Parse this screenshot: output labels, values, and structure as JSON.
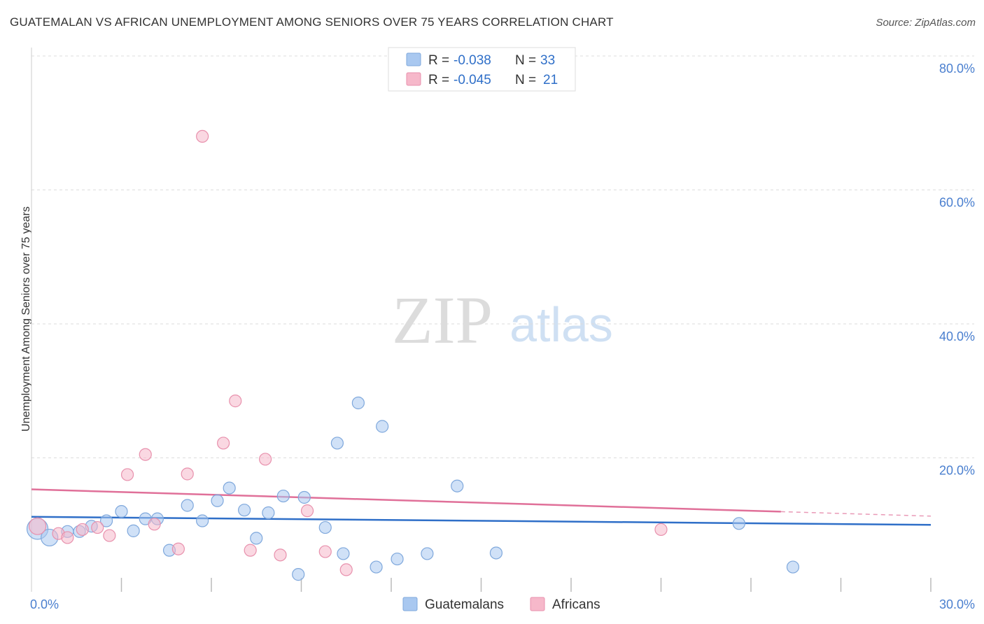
{
  "title": "GUATEMALAN VS AFRICAN UNEMPLOYMENT AMONG SENIORS OVER 75 YEARS CORRELATION CHART",
  "source": "Source: ZipAtlas.com",
  "watermark": {
    "zip": "ZIP",
    "atlas": "atlas"
  },
  "legend": {
    "rows": [
      {
        "r_label": "R = ",
        "r_value": "-0.038",
        "n_label": "N = ",
        "n_value": "33",
        "color": "#a9c8f0"
      },
      {
        "r_label": "R = ",
        "r_value": "-0.045",
        "n_label": "N = ",
        "n_value": "21",
        "color": "#f6b8ca"
      }
    ]
  },
  "bottom_legend": [
    {
      "label": "Guatemalans",
      "color": "#a9c8f0"
    },
    {
      "label": "Africans",
      "color": "#f6b8ca"
    }
  ],
  "colors": {
    "blue_fill": "#a9c8f0",
    "blue_stroke": "#7fa8dc",
    "blue_line": "#2f6fc8",
    "pink_fill": "#f6b8ca",
    "pink_stroke": "#e891ad",
    "pink_line": "#e07099",
    "axis_text": "#4a7fcf",
    "grid": "#dddddd"
  },
  "chart_data": {
    "type": "scatter",
    "title": "GUATEMALAN VS AFRICAN UNEMPLOYMENT AMONG SENIORS OVER 75 YEARS CORRELATION CHART",
    "xlabel": "",
    "ylabel": "Unemployment Among Seniors over 75 years",
    "xlim": [
      0,
      30
    ],
    "ylim": [
      0,
      80
    ],
    "x_tick_labels": [
      {
        "value": 0,
        "label": "0.0%"
      },
      {
        "value": 30,
        "label": "30.0%"
      }
    ],
    "y_tick_labels": [
      {
        "value": 20,
        "label": "20.0%"
      },
      {
        "value": 40,
        "label": "40.0%"
      },
      {
        "value": 60,
        "label": "60.0%"
      },
      {
        "value": 80,
        "label": "80.0%"
      }
    ],
    "x_minor_ticks": [
      3,
      6,
      9,
      12,
      15,
      18,
      21,
      24,
      27,
      30
    ],
    "grid": true,
    "series": [
      {
        "name": "Guatemalans",
        "r": -0.038,
        "n": 33,
        "trend": {
          "x0": 0,
          "y0": 11.2,
          "x1": 30,
          "y1": 10.0,
          "dashed_from": null
        },
        "points": [
          {
            "x": 0.2,
            "y": 9.4,
            "size": 3
          },
          {
            "x": 0.6,
            "y": 8.1,
            "size": 2
          },
          {
            "x": 1.2,
            "y": 9.0,
            "size": 1
          },
          {
            "x": 1.6,
            "y": 9.0,
            "size": 1
          },
          {
            "x": 2.0,
            "y": 9.8,
            "size": 1
          },
          {
            "x": 2.5,
            "y": 10.6,
            "size": 1
          },
          {
            "x": 3.0,
            "y": 12.0,
            "size": 1
          },
          {
            "x": 3.4,
            "y": 9.1,
            "size": 1
          },
          {
            "x": 3.8,
            "y": 10.9,
            "size": 1
          },
          {
            "x": 4.2,
            "y": 10.9,
            "size": 1
          },
          {
            "x": 4.6,
            "y": 6.2,
            "size": 1
          },
          {
            "x": 5.2,
            "y": 12.9,
            "size": 1
          },
          {
            "x": 5.7,
            "y": 10.6,
            "size": 1
          },
          {
            "x": 6.2,
            "y": 13.6,
            "size": 1
          },
          {
            "x": 6.6,
            "y": 15.5,
            "size": 1
          },
          {
            "x": 7.1,
            "y": 12.2,
            "size": 1
          },
          {
            "x": 7.5,
            "y": 8.0,
            "size": 1
          },
          {
            "x": 7.9,
            "y": 11.8,
            "size": 1
          },
          {
            "x": 8.4,
            "y": 14.3,
            "size": 1
          },
          {
            "x": 8.9,
            "y": 2.6,
            "size": 1
          },
          {
            "x": 9.1,
            "y": 14.1,
            "size": 1
          },
          {
            "x": 9.8,
            "y": 9.6,
            "size": 1
          },
          {
            "x": 10.2,
            "y": 22.2,
            "size": 1
          },
          {
            "x": 10.4,
            "y": 5.7,
            "size": 1
          },
          {
            "x": 10.9,
            "y": 28.2,
            "size": 1
          },
          {
            "x": 11.5,
            "y": 3.7,
            "size": 1
          },
          {
            "x": 11.7,
            "y": 24.7,
            "size": 1
          },
          {
            "x": 12.2,
            "y": 4.9,
            "size": 1
          },
          {
            "x": 13.2,
            "y": 5.7,
            "size": 1
          },
          {
            "x": 14.2,
            "y": 15.8,
            "size": 1
          },
          {
            "x": 15.5,
            "y": 5.8,
            "size": 1
          },
          {
            "x": 23.6,
            "y": 10.2,
            "size": 1
          },
          {
            "x": 25.4,
            "y": 3.7,
            "size": 1
          }
        ]
      },
      {
        "name": "Africans",
        "r": -0.045,
        "n": 21,
        "trend": {
          "x0": 0,
          "y0": 15.3,
          "x1": 30,
          "y1": 11.3,
          "dashed_from": 25.0
        },
        "points": [
          {
            "x": 0.2,
            "y": 9.8,
            "size": 2
          },
          {
            "x": 0.9,
            "y": 8.7,
            "size": 1
          },
          {
            "x": 1.2,
            "y": 8.1,
            "size": 1
          },
          {
            "x": 1.7,
            "y": 9.3,
            "size": 1
          },
          {
            "x": 2.2,
            "y": 9.6,
            "size": 1
          },
          {
            "x": 2.6,
            "y": 8.4,
            "size": 1
          },
          {
            "x": 3.2,
            "y": 17.5,
            "size": 1
          },
          {
            "x": 3.8,
            "y": 20.5,
            "size": 1
          },
          {
            "x": 4.1,
            "y": 10.1,
            "size": 1
          },
          {
            "x": 4.9,
            "y": 6.4,
            "size": 1
          },
          {
            "x": 5.2,
            "y": 17.6,
            "size": 1
          },
          {
            "x": 5.7,
            "y": 68.0,
            "size": 1
          },
          {
            "x": 6.4,
            "y": 22.2,
            "size": 1
          },
          {
            "x": 6.8,
            "y": 28.5,
            "size": 1
          },
          {
            "x": 7.3,
            "y": 6.2,
            "size": 1
          },
          {
            "x": 7.8,
            "y": 19.8,
            "size": 1
          },
          {
            "x": 8.3,
            "y": 5.5,
            "size": 1
          },
          {
            "x": 9.2,
            "y": 12.1,
            "size": 1
          },
          {
            "x": 9.8,
            "y": 6.0,
            "size": 1
          },
          {
            "x": 10.5,
            "y": 3.3,
            "size": 1
          },
          {
            "x": 21.0,
            "y": 9.3,
            "size": 1
          }
        ]
      }
    ]
  }
}
